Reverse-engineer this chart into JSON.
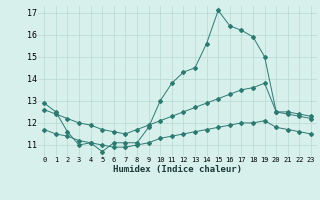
{
  "xlabel": "Humidex (Indice chaleur)",
  "bg_color": "#d8f0ec",
  "line_color": "#2d7a72",
  "grid_color": "#b8d8d2",
  "x_min": 0,
  "x_max": 23,
  "y_min": 11,
  "y_max": 17,
  "ylim_bottom": 10.5,
  "ylim_top": 17.3,
  "line1_x": [
    0,
    1,
    2,
    3,
    4,
    5,
    6,
    7,
    8,
    9,
    10,
    11,
    12,
    13,
    14,
    15,
    16,
    17,
    18,
    19,
    20,
    21,
    22,
    23
  ],
  "line1_y": [
    12.9,
    12.5,
    11.6,
    11.0,
    11.1,
    10.7,
    11.1,
    11.1,
    11.1,
    11.8,
    13.0,
    13.8,
    14.3,
    14.5,
    15.6,
    17.1,
    16.4,
    16.2,
    15.9,
    15.0,
    12.5,
    12.5,
    12.4,
    12.3
  ],
  "line2_x": [
    0,
    1,
    2,
    3,
    4,
    5,
    6,
    7,
    8,
    9,
    10,
    11,
    12,
    13,
    14,
    15,
    16,
    17,
    18,
    19,
    20,
    21,
    22,
    23
  ],
  "line2_y": [
    12.6,
    12.4,
    12.2,
    12.0,
    11.9,
    11.7,
    11.6,
    11.5,
    11.7,
    11.9,
    12.1,
    12.3,
    12.5,
    12.7,
    12.9,
    13.1,
    13.3,
    13.5,
    13.6,
    13.8,
    12.5,
    12.4,
    12.3,
    12.2
  ],
  "line3_x": [
    0,
    1,
    2,
    3,
    4,
    5,
    6,
    7,
    8,
    9,
    10,
    11,
    12,
    13,
    14,
    15,
    16,
    17,
    18,
    19,
    20,
    21,
    22,
    23
  ],
  "line3_y": [
    11.7,
    11.5,
    11.4,
    11.2,
    11.1,
    11.0,
    10.9,
    10.9,
    11.0,
    11.1,
    11.3,
    11.4,
    11.5,
    11.6,
    11.7,
    11.8,
    11.9,
    12.0,
    12.0,
    12.1,
    11.8,
    11.7,
    11.6,
    11.5
  ],
  "xtick_fontsize": 5.0,
  "ytick_fontsize": 6.0,
  "xlabel_fontsize": 6.5,
  "marker_size": 2.0,
  "linewidth": 0.7
}
